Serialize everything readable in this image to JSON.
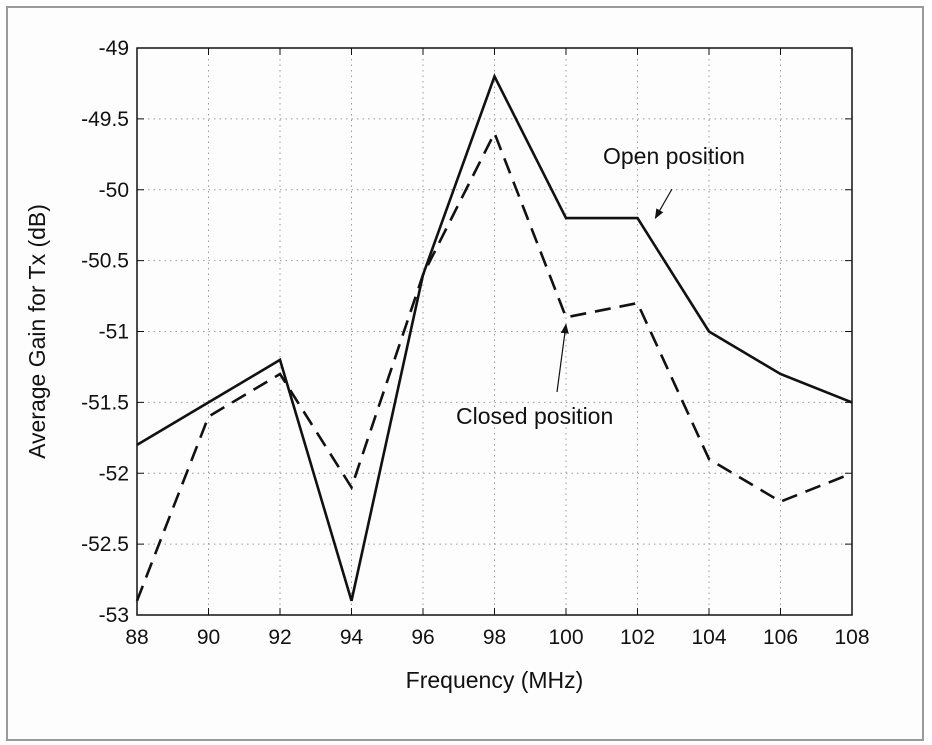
{
  "chart_data": {
    "type": "line",
    "title": "",
    "xlabel": "Frequency (MHz)",
    "ylabel": "Average Gain for Tx (dB)",
    "xlim": [
      88,
      108
    ],
    "ylim": [
      -53,
      -49
    ],
    "xticks": [
      88,
      90,
      92,
      94,
      96,
      98,
      100,
      102,
      104,
      106,
      108
    ],
    "yticks": [
      -49,
      -49.5,
      -50,
      -50.5,
      -51,
      -51.5,
      -52,
      -52.5,
      -53
    ],
    "grid": true,
    "x": [
      88,
      90,
      92,
      94,
      96,
      98,
      100,
      102,
      104,
      106,
      108
    ],
    "series": [
      {
        "name": "Open position",
        "style": "solid",
        "color": "#111111",
        "values": [
          -51.8,
          -51.5,
          -51.2,
          -52.9,
          -50.6,
          -49.2,
          -50.2,
          -50.2,
          -51.0,
          -51.3,
          -51.5
        ]
      },
      {
        "name": "Closed position",
        "style": "dashed",
        "color": "#111111",
        "values": [
          -52.9,
          -51.6,
          -51.3,
          -52.1,
          -50.6,
          -49.6,
          -50.9,
          -50.8,
          -51.9,
          -52.2,
          -52.0
        ]
      }
    ],
    "annotations": [
      {
        "text": "Open position",
        "series": 0,
        "arrow_to": {
          "x": 102.5,
          "y": -50.2
        }
      },
      {
        "text": "Closed position",
        "series": 1,
        "arrow_to": {
          "x": 100,
          "y": -50.95
        }
      }
    ]
  }
}
